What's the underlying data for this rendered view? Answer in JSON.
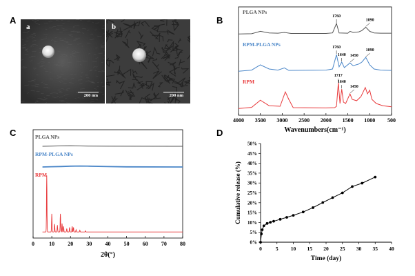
{
  "panels": {
    "A": "A",
    "B": "B",
    "C": "C",
    "D": "D"
  },
  "sem": {
    "images": [
      {
        "label": "a",
        "scale_bar": "200 nm"
      },
      {
        "label": "b",
        "scale_bar": "200 nm"
      }
    ]
  },
  "colors": {
    "plga": "#555555",
    "rpm_plga": "#4a86c8",
    "rpm": "#e8393b",
    "release": "#000000"
  },
  "chart_data": [
    {
      "panel": "B",
      "type": "line",
      "xlabel": "Wavenumbers(cm⁻¹)",
      "xlim": [
        4000,
        500
      ],
      "xticks": [
        4000,
        3500,
        3000,
        2500,
        2000,
        1500,
        1000,
        500
      ],
      "grid": false,
      "series": [
        {
          "name": "PLGA NPs",
          "baseline": [
            [
              4000,
              0.02
            ],
            [
              3700,
              0.03
            ],
            [
              3500,
              0.12
            ],
            [
              3300,
              0.06
            ],
            [
              3100,
              0.05
            ],
            [
              2950,
              0.08
            ],
            [
              2800,
              0.04
            ],
            [
              2000,
              0.04
            ],
            [
              1850,
              0.06
            ],
            [
              1760,
              0.42
            ],
            [
              1700,
              0.06
            ],
            [
              1500,
              0.05
            ],
            [
              1450,
              0.12
            ],
            [
              1380,
              0.08
            ],
            [
              1250,
              0.1
            ],
            [
              1180,
              0.15
            ],
            [
              1090,
              0.28
            ],
            [
              1000,
              0.12
            ],
            [
              900,
              0.06
            ],
            [
              750,
              0.05
            ],
            [
              500,
              0.05
            ]
          ],
          "annotations": [
            {
              "x": 1760,
              "text": "1760"
            },
            {
              "x": 1090,
              "text": "1090"
            }
          ]
        },
        {
          "name": "RPM-PLGA NPs",
          "baseline": [
            [
              4000,
              0.02
            ],
            [
              3700,
              0.06
            ],
            [
              3500,
              0.25
            ],
            [
              3300,
              0.1
            ],
            [
              3100,
              0.06
            ],
            [
              2950,
              0.14
            ],
            [
              2850,
              0.05
            ],
            [
              2000,
              0.06
            ],
            [
              1850,
              0.1
            ],
            [
              1760,
              0.62
            ],
            [
              1700,
              0.18
            ],
            [
              1640,
              0.35
            ],
            [
              1580,
              0.15
            ],
            [
              1450,
              0.32
            ],
            [
              1380,
              0.22
            ],
            [
              1250,
              0.28
            ],
            [
              1180,
              0.35
            ],
            [
              1090,
              0.52
            ],
            [
              1000,
              0.25
            ],
            [
              900,
              0.1
            ],
            [
              750,
              0.06
            ],
            [
              500,
              0.05
            ]
          ],
          "annotations": [
            {
              "x": 1760,
              "text": "1760"
            },
            {
              "x": 1640,
              "text": "1640"
            },
            {
              "x": 1450,
              "text": "1450"
            },
            {
              "x": 1090,
              "text": "1090"
            }
          ]
        },
        {
          "name": "RPM",
          "baseline": [
            [
              4000,
              0.02
            ],
            [
              3700,
              0.06
            ],
            [
              3500,
              0.32
            ],
            [
              3300,
              0.12
            ],
            [
              3050,
              0.1
            ],
            [
              2930,
              0.62
            ],
            [
              2850,
              0.35
            ],
            [
              2750,
              0.05
            ],
            [
              2000,
              0.04
            ],
            [
              1800,
              0.05
            ],
            [
              1760,
              0.1
            ],
            [
              1717,
              0.95
            ],
            [
              1680,
              0.2
            ],
            [
              1640,
              0.72
            ],
            [
              1600,
              0.25
            ],
            [
              1550,
              0.2
            ],
            [
              1450,
              0.55
            ],
            [
              1400,
              0.35
            ],
            [
              1300,
              0.3
            ],
            [
              1200,
              0.45
            ],
            [
              1100,
              0.78
            ],
            [
              1050,
              0.55
            ],
            [
              1000,
              0.68
            ],
            [
              950,
              0.35
            ],
            [
              850,
              0.2
            ],
            [
              700,
              0.12
            ],
            [
              500,
              0.08
            ]
          ],
          "annotations": [
            {
              "x": 1717,
              "text": "1717"
            },
            {
              "x": 1640,
              "text": "1640"
            },
            {
              "x": 1450,
              "text": "1450"
            }
          ]
        }
      ]
    },
    {
      "panel": "C",
      "type": "line",
      "xlabel": "2θ(°)",
      "xlim": [
        0,
        80
      ],
      "xticks": [
        0,
        10,
        20,
        30,
        40,
        50,
        60,
        70,
        80
      ],
      "grid": false,
      "series": [
        {
          "name": "PLGA NPs",
          "profile": "flat",
          "points": [
            [
              5,
              0.0
            ],
            [
              10,
              0.05
            ],
            [
              15,
              0.1
            ],
            [
              20,
              0.12
            ],
            [
              25,
              0.08
            ],
            [
              30,
              0.04
            ],
            [
              40,
              0.02
            ],
            [
              80,
              0.0
            ]
          ]
        },
        {
          "name": "RPM-PLGA NPs",
          "profile": "flat",
          "points": [
            [
              5,
              0.0
            ],
            [
              10,
              0.03
            ],
            [
              15,
              0.06
            ],
            [
              20,
              0.1
            ],
            [
              25,
              0.12
            ],
            [
              30,
              0.1
            ],
            [
              40,
              0.05
            ],
            [
              50,
              0.02
            ],
            [
              80,
              0.0
            ]
          ]
        },
        {
          "name": "RPM",
          "profile": "peaks",
          "peaks": [
            [
              7.3,
              1.0
            ],
            [
              10,
              0.32
            ],
            [
              11.5,
              0.14
            ],
            [
              13,
              0.12
            ],
            [
              14.6,
              0.32
            ],
            [
              15.5,
              0.15
            ],
            [
              16.3,
              0.1
            ],
            [
              18,
              0.06
            ],
            [
              19.5,
              0.08
            ],
            [
              20.9,
              0.1
            ],
            [
              21.6,
              0.08
            ],
            [
              23,
              0.04
            ],
            [
              25,
              0.03
            ],
            [
              28,
              0.02
            ]
          ]
        }
      ]
    },
    {
      "panel": "D",
      "type": "line",
      "xlabel": "Time (day)",
      "ylabel": "Cumulative release (%)",
      "xlim": [
        0,
        40
      ],
      "ylim": [
        0,
        50
      ],
      "xticks": [
        0,
        5,
        10,
        15,
        20,
        25,
        30,
        35,
        40
      ],
      "yticks": [
        "0%",
        "5%",
        "10%",
        "15%",
        "20%",
        "25%",
        "30%",
        "35%",
        "40%",
        "45%",
        "50%"
      ],
      "grid": false,
      "series": [
        {
          "x": [
            0,
            0.25,
            0.5,
            1,
            2,
            3,
            4,
            6,
            8,
            10,
            13,
            16,
            19,
            22,
            25,
            28,
            31,
            35
          ],
          "y": [
            0,
            4.2,
            6.3,
            8.3,
            9.5,
            10.1,
            10.6,
            11.6,
            12.6,
            13.6,
            15.3,
            17.5,
            20.1,
            22.6,
            25.0,
            28.2,
            29.9,
            33.0
          ]
        }
      ]
    }
  ]
}
